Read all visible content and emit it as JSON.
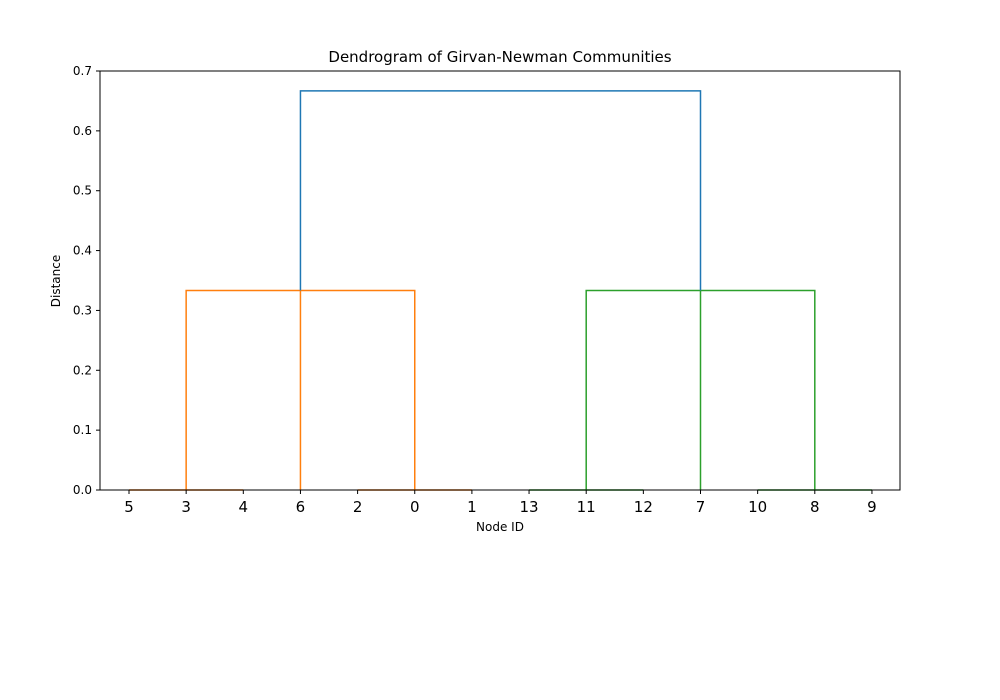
{
  "chart_data": {
    "type": "dendrogram",
    "title": "Dendrogram of Girvan-Newman Communities",
    "xlabel": "Node ID",
    "ylabel": "Distance",
    "ylim": [
      0,
      0.7
    ],
    "yticks": [
      0.0,
      0.1,
      0.2,
      0.3,
      0.4,
      0.5,
      0.6,
      0.7
    ],
    "ytick_labels": [
      "0.0",
      "0.1",
      "0.2",
      "0.3",
      "0.4",
      "0.5",
      "0.6",
      "0.7"
    ],
    "leaves": [
      "5",
      "3",
      "4",
      "6",
      "2",
      "0",
      "1",
      "13",
      "11",
      "12",
      "7",
      "10",
      "8",
      "9"
    ],
    "colors": {
      "cluster_a": "#ff7f0e",
      "cluster_b": "#2ca02c",
      "root": "#1f77b4"
    },
    "links": [
      {
        "from": [
          0,
          0.0
        ],
        "to": [
          2,
          0.0
        ],
        "color": "cluster_a"
      },
      {
        "from": [
          4,
          0.0
        ],
        "to": [
          6,
          0.0
        ],
        "color": "cluster_a"
      },
      {
        "from": [
          7,
          0.0
        ],
        "to": [
          9,
          0.0
        ],
        "color": "cluster_b"
      },
      {
        "from": [
          11,
          0.0
        ],
        "to": [
          13,
          0.0
        ],
        "color": "cluster_b"
      },
      {
        "path": [
          [
            1,
            0.0
          ],
          [
            1,
            0.3333
          ],
          [
            5,
            0.3333
          ],
          [
            5,
            0.0
          ]
        ],
        "color": "cluster_a"
      },
      {
        "path": [
          [
            3,
            0.0
          ],
          [
            3,
            0.3333
          ]
        ],
        "color": "cluster_a"
      },
      {
        "path": [
          [
            8,
            0.0
          ],
          [
            8,
            0.3333
          ],
          [
            12,
            0.3333
          ],
          [
            12,
            0.0
          ]
        ],
        "color": "cluster_b"
      },
      {
        "path": [
          [
            10,
            0.0
          ],
          [
            10,
            0.3333
          ]
        ],
        "color": "cluster_b"
      },
      {
        "path": [
          [
            3,
            0.3333
          ],
          [
            3,
            0.6667
          ],
          [
            10,
            0.6667
          ],
          [
            10,
            0.3333
          ]
        ],
        "color": "root"
      }
    ]
  }
}
